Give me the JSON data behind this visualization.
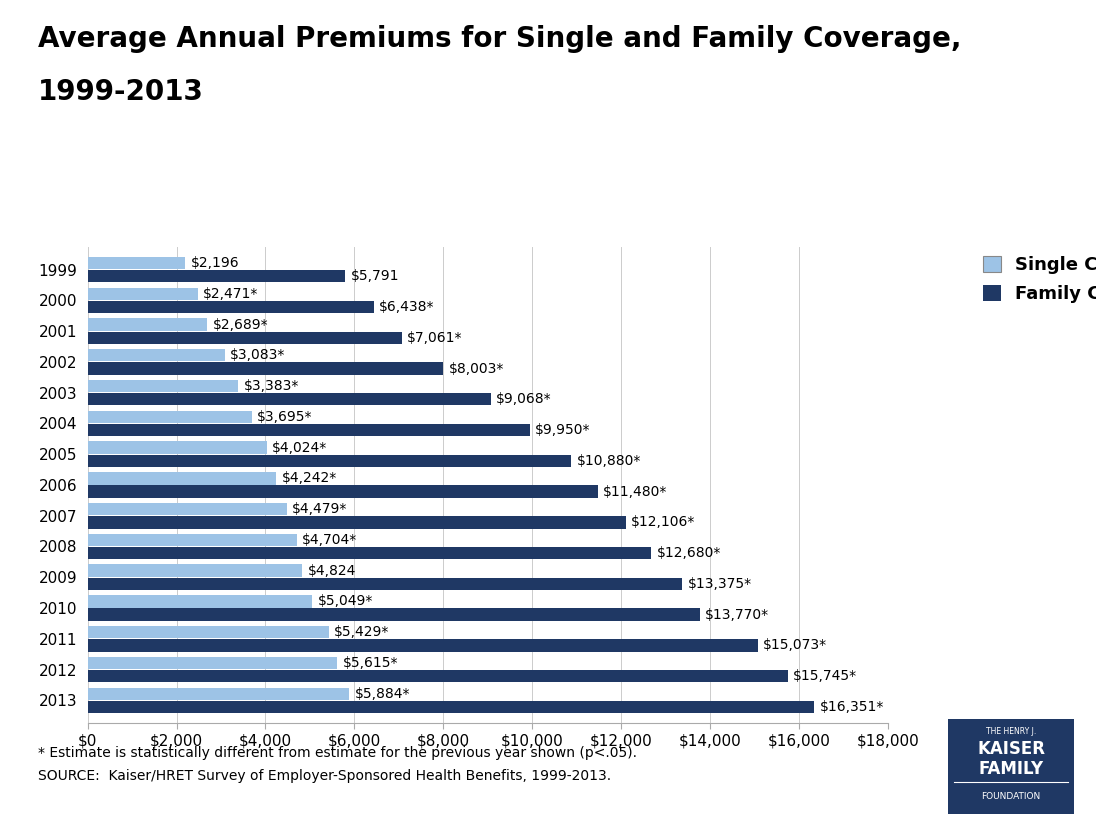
{
  "title_line1": "Average Annual Premiums for Single and Family Coverage,",
  "title_line2": "1999-2013",
  "years": [
    "1999",
    "2000",
    "2001",
    "2002",
    "2003",
    "2004",
    "2005",
    "2006",
    "2007",
    "2008",
    "2009",
    "2010",
    "2011",
    "2012",
    "2013"
  ],
  "single": [
    2196,
    2471,
    2689,
    3083,
    3383,
    3695,
    4024,
    4242,
    4479,
    4704,
    4824,
    5049,
    5429,
    5615,
    5884
  ],
  "family": [
    5791,
    6438,
    7061,
    8003,
    9068,
    9950,
    10880,
    11480,
    12106,
    12680,
    13375,
    13770,
    15073,
    15745,
    16351
  ],
  "single_labels": [
    "$2,196",
    "$2,471*",
    "$2,689*",
    "$3,083*",
    "$3,383*",
    "$3,695*",
    "$4,024*",
    "$4,242*",
    "$4,479*",
    "$4,704*",
    "$4,824",
    "$5,049*",
    "$5,429*",
    "$5,615*",
    "$5,884*"
  ],
  "family_labels": [
    "$5,791",
    "$6,438*",
    "$7,061*",
    "$8,003*",
    "$9,068*",
    "$9,950*",
    "$10,880*",
    "$11,480*",
    "$12,106*",
    "$12,680*",
    "$13,375*",
    "$13,770*",
    "$15,073*",
    "$15,745*",
    "$16,351*"
  ],
  "single_color": "#9DC3E6",
  "family_color": "#1F3864",
  "background_color": "#FFFFFF",
  "xlim": [
    0,
    18000
  ],
  "xticks": [
    0,
    2000,
    4000,
    6000,
    8000,
    10000,
    12000,
    14000,
    16000,
    18000
  ],
  "footnote1": "* Estimate is statistically different from estimate for the previous year shown (p<.05).",
  "footnote2": "SOURCE:  Kaiser/HRET Survey of Employer-Sponsored Health Benefits, 1999-2013.",
  "legend_single": "Single Coverage",
  "legend_family": "Family Coverage",
  "title_fontsize": 20,
  "label_fontsize": 10,
  "tick_fontsize": 11,
  "legend_fontsize": 13,
  "footnote_fontsize": 10,
  "bar_height": 0.4,
  "bar_gap": 0.03
}
